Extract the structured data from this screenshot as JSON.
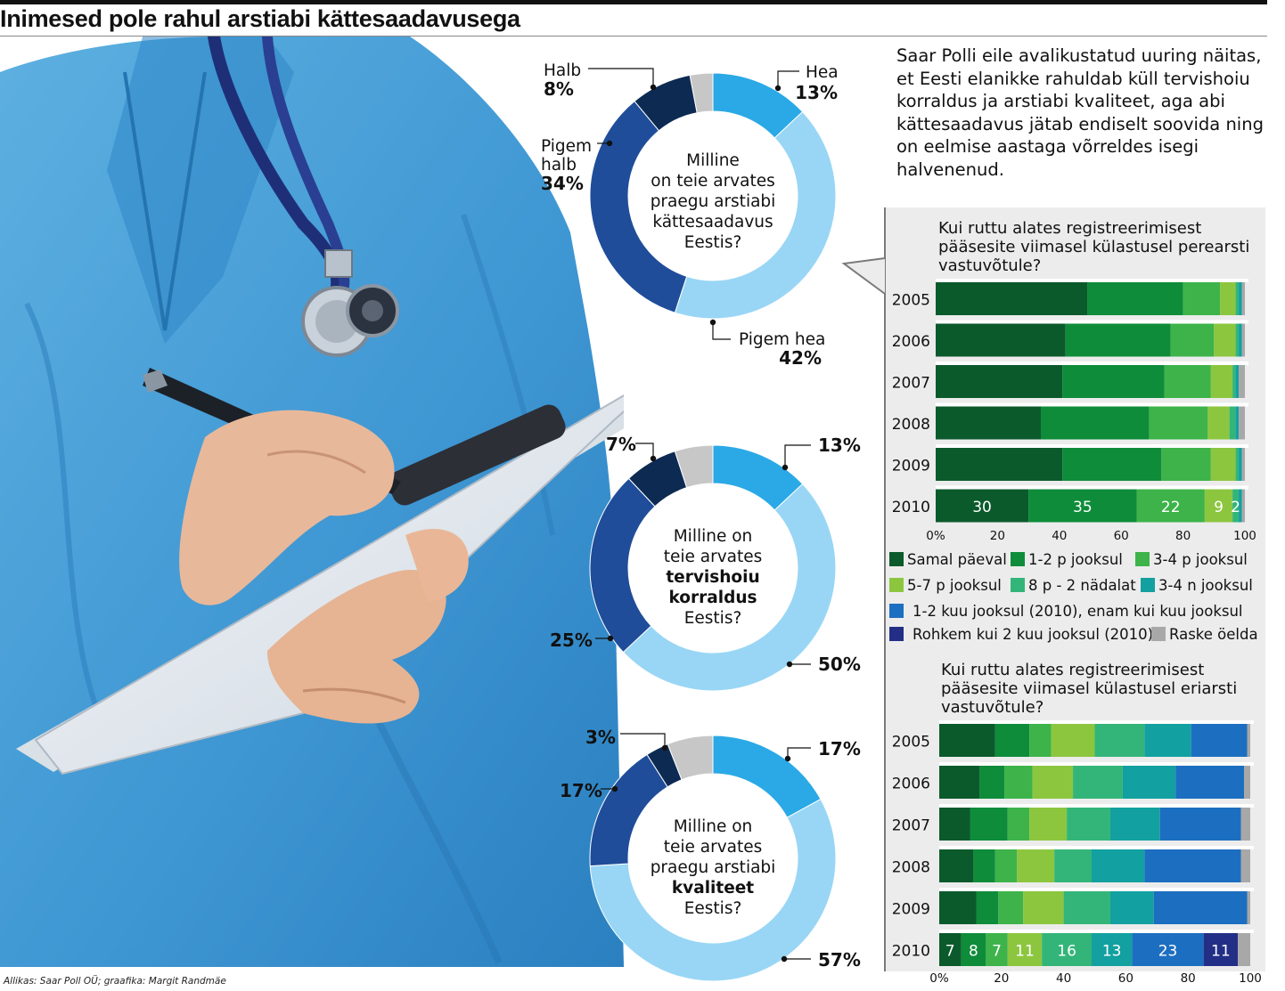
{
  "title": "Inimesed pole rahul arstiabi kättesaadavusega",
  "intro": "Saar Polli eile avalikustatud uuring näitas, et Eesti elanikke rahuldab küll tervishoiu korraldus ja arstiabi kvaliteet, aga abi kättesaadavus jätab endiselt soovida ning on eelmise aastaga võrreldes isegi halvenenud.",
  "credit": "Allikas: Saar Poll OÜ; graafika: Margit Randmäe",
  "colors": {
    "donut": {
      "Hea": "#2aa9e6",
      "Pigem hea": "#99d6f5",
      "Pigem halb": "#1f4d9a",
      "Halb": "#0d2a52",
      "Raske öelda": "#c7c7c7"
    },
    "bars": [
      "#0b5a2c",
      "#0e8c3a",
      "#3db34a",
      "#8cc63f",
      "#33b579",
      "#13a0a0",
      "#1c6fc0",
      "#232f86",
      "#a8a8a8"
    ]
  },
  "chart_data": [
    {
      "type": "pie",
      "title": "Milline on teie arvates praegu arstiabi kättesaadavus Eestis?",
      "slices": [
        {
          "label": "Hea",
          "value": 13,
          "text": "13%"
        },
        {
          "label": "Pigem hea",
          "value": 42,
          "text": "42%"
        },
        {
          "label": "Pigem halb",
          "value": 34,
          "text": "34%"
        },
        {
          "label": "Halb",
          "value": 8,
          "text": "8%"
        },
        {
          "label": "Raske öelda",
          "value": 3,
          "text": ""
        }
      ]
    },
    {
      "type": "pie",
      "title": "Milline on teie arvates tervishoiu korraldus Eestis?",
      "slices": [
        {
          "label": "Hea",
          "value": 13,
          "text": "13%"
        },
        {
          "label": "Pigem hea",
          "value": 50,
          "text": "50%"
        },
        {
          "label": "Pigem halb",
          "value": 25,
          "text": "25%"
        },
        {
          "label": "Halb",
          "value": 7,
          "text": "7%"
        },
        {
          "label": "Raske öelda",
          "value": 5,
          "text": ""
        }
      ]
    },
    {
      "type": "pie",
      "title": "Milline on teie arvates praegu arstiabi kvaliteet Eestis?",
      "slices": [
        {
          "label": "Hea",
          "value": 17,
          "text": "17%"
        },
        {
          "label": "Pigem hea",
          "value": 57,
          "text": "57%"
        },
        {
          "label": "Pigem halb",
          "value": 17,
          "text": "17%"
        },
        {
          "label": "Halb",
          "value": 3,
          "text": "3%"
        },
        {
          "label": "Raske öelda",
          "value": 6,
          "text": ""
        }
      ]
    },
    {
      "type": "bar",
      "title": "Kui ruttu alates registreerimisest pääsesite viimasel külastusel perearsti vastuvõtule?",
      "categories": [
        "2005",
        "2006",
        "2007",
        "2008",
        "2009",
        "2010"
      ],
      "series": [
        {
          "name": "Samal päeval",
          "values": [
            49,
            42,
            41,
            34,
            41,
            30
          ]
        },
        {
          "name": "1-2 p jooksul",
          "values": [
            31,
            34,
            33,
            35,
            32,
            35
          ]
        },
        {
          "name": "3-4 p jooksul",
          "values": [
            12,
            14,
            15,
            19,
            16,
            22
          ]
        },
        {
          "name": "5-7 p jooksul",
          "values": [
            5,
            7,
            7,
            7,
            8,
            9
          ]
        },
        {
          "name": "8 p - 2 nädalat",
          "values": [
            1,
            1,
            1,
            2,
            1,
            2
          ]
        },
        {
          "name": "3-4 n jooksul",
          "values": [
            1,
            1,
            1,
            1,
            1,
            1
          ]
        },
        {
          "name": "1-2 kuu jooksul (2010), enam kui kuu jooksul",
          "values": [
            0,
            0,
            0,
            0,
            0,
            0
          ]
        },
        {
          "name": "Rohkem kui 2 kuu jooksul (2010)",
          "values": [
            0,
            0,
            0,
            0,
            0,
            0
          ]
        },
        {
          "name": "Raske öelda",
          "values": [
            1,
            1,
            2,
            2,
            1,
            1
          ]
        }
      ],
      "data_labels_2010": [
        "30",
        "35",
        "22",
        "9",
        "2"
      ],
      "xticks": [
        "0%",
        "20",
        "40",
        "60",
        "80",
        "100"
      ],
      "xlim": [
        0,
        100
      ]
    },
    {
      "type": "bar",
      "title": "Kui ruttu alates registreerimisest pääsesite viimasel külastusel eriarsti vastuvõtule?",
      "categories": [
        "2005",
        "2006",
        "2007",
        "2008",
        "2009",
        "2010"
      ],
      "series": [
        {
          "name": "Samal päeval",
          "values": [
            18,
            13,
            10,
            11,
            12,
            7
          ]
        },
        {
          "name": "1-2 p jooksul",
          "values": [
            11,
            8,
            12,
            7,
            7,
            8
          ]
        },
        {
          "name": "3-4 p jooksul",
          "values": [
            7,
            9,
            7,
            7,
            8,
            7
          ]
        },
        {
          "name": "5-7 p jooksul",
          "values": [
            14,
            13,
            12,
            12,
            13,
            11
          ]
        },
        {
          "name": "8 p - 2 nädalat",
          "values": [
            16,
            16,
            14,
            12,
            15,
            16
          ]
        },
        {
          "name": "3-4 n jooksul",
          "values": [
            15,
            17,
            16,
            17,
            14,
            13
          ]
        },
        {
          "name": "1-2 kuu jooksul (2010), enam kui kuu jooksul",
          "values": [
            18,
            22,
            26,
            31,
            30,
            23
          ]
        },
        {
          "name": "Rohkem kui 2 kuu jooksul (2010)",
          "values": [
            0,
            0,
            0,
            0,
            0,
            11
          ]
        },
        {
          "name": "Raske öelda",
          "values": [
            1,
            2,
            3,
            3,
            1,
            4
          ]
        }
      ],
      "data_labels_2010": [
        "7",
        "8",
        "7",
        "11",
        "16",
        "13",
        "23",
        "11"
      ],
      "xticks": [
        "0%",
        "20",
        "40",
        "60",
        "80",
        "100"
      ],
      "xlim": [
        0,
        100
      ]
    }
  ]
}
